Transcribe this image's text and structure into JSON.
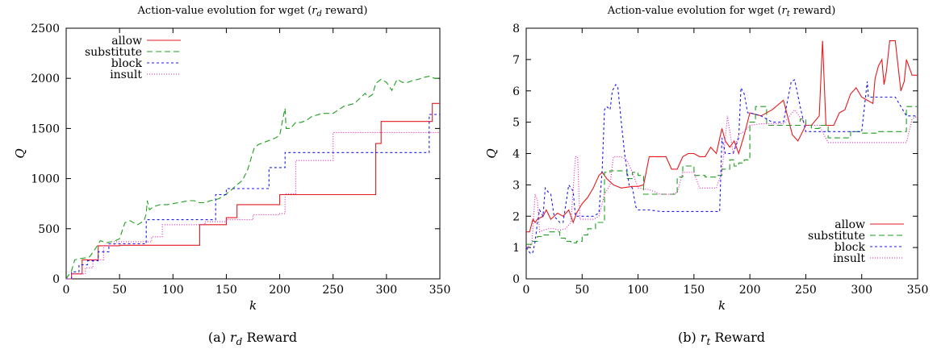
{
  "series_styles": {
    "allow": {
      "color": "#e41a1c",
      "dash": ""
    },
    "substitute": {
      "color": "#1e9e1e",
      "dash": "7,4"
    },
    "block": {
      "color": "#1a1aee",
      "dash": "3,3"
    },
    "insult": {
      "color": "#e01fb0",
      "dash": "1,2"
    }
  },
  "chart_data": [
    {
      "type": "line",
      "title_prefix": "Action-value evolution for wget (",
      "title_var": "r",
      "title_sub": "d",
      "title_suffix": " reward)",
      "xlabel": "k",
      "ylabel": "Q",
      "xlim": [
        0,
        350
      ],
      "ylim": [
        0,
        2500
      ],
      "xticks": [
        0,
        50,
        100,
        150,
        200,
        250,
        300,
        350
      ],
      "yticks": [
        0,
        500,
        1000,
        1500,
        2000,
        2500
      ],
      "legend_position": "top-left",
      "caption_label": "(a)",
      "caption_var": "r",
      "caption_sub": "d",
      "caption_suffix": " Reward",
      "series": [
        {
          "name": "allow",
          "step": true,
          "x": [
            0,
            5,
            15,
            30,
            50,
            118,
            125,
            150,
            160,
            200,
            290,
            295,
            320,
            343,
            350
          ],
          "y": [
            0,
            50,
            190,
            330,
            335,
            335,
            540,
            610,
            740,
            840,
            1350,
            1570,
            1570,
            1750,
            1750
          ]
        },
        {
          "name": "substitute",
          "step": false,
          "x": [
            0,
            5,
            8,
            12,
            18,
            22,
            28,
            32,
            38,
            42,
            46,
            50,
            55,
            60,
            63,
            67,
            70,
            73,
            75,
            76,
            78,
            82,
            88,
            95,
            100,
            110,
            115,
            120,
            125,
            130,
            135,
            140,
            143,
            148,
            155,
            160,
            165,
            170,
            176,
            180,
            185,
            190,
            195,
            200,
            203,
            205,
            206,
            210,
            215,
            220,
            225,
            230,
            240,
            250,
            260,
            270,
            280,
            283,
            287,
            290,
            295,
            300,
            305,
            310,
            315,
            320,
            325,
            330,
            335,
            340,
            345,
            350
          ],
          "y": [
            0,
            80,
            190,
            200,
            210,
            220,
            310,
            380,
            360,
            370,
            380,
            400,
            560,
            580,
            560,
            540,
            560,
            580,
            650,
            780,
            690,
            720,
            740,
            740,
            750,
            770,
            780,
            780,
            760,
            760,
            780,
            790,
            800,
            830,
            890,
            940,
            980,
            1090,
            1300,
            1340,
            1360,
            1380,
            1400,
            1430,
            1600,
            1700,
            1500,
            1500,
            1560,
            1560,
            1580,
            1620,
            1650,
            1650,
            1720,
            1750,
            1850,
            1810,
            1840,
            1950,
            1990,
            1960,
            1880,
            1990,
            1960,
            1960,
            1980,
            1990,
            2010,
            2020,
            2000,
            2000
          ]
        },
        {
          "name": "block",
          "step": true,
          "x": [
            0,
            5,
            12,
            20,
            30,
            40,
            75,
            140,
            150,
            190,
            205,
            250,
            340,
            350
          ],
          "y": [
            0,
            70,
            140,
            180,
            270,
            350,
            590,
            840,
            900,
            1110,
            1260,
            1260,
            1640,
            1640
          ]
        },
        {
          "name": "insult",
          "step": true,
          "x": [
            0,
            5,
            18,
            25,
            35,
            45,
            75,
            80,
            90,
            100,
            130,
            150,
            175,
            200,
            205,
            215,
            250,
            340,
            350
          ],
          "y": [
            0,
            50,
            110,
            190,
            330,
            370,
            370,
            420,
            540,
            540,
            570,
            590,
            640,
            650,
            850,
            1180,
            1460,
            1460,
            1460
          ]
        }
      ]
    },
    {
      "type": "line",
      "title_prefix": "Action-value evolution for wget (",
      "title_var": "r",
      "title_sub": "t",
      "title_suffix": " reward)",
      "xlabel": "k",
      "ylabel": "Q",
      "xlim": [
        0,
        350
      ],
      "ylim": [
        0,
        8
      ],
      "xticks": [
        0,
        50,
        100,
        150,
        200,
        250,
        300,
        350
      ],
      "yticks": [
        0,
        1,
        2,
        3,
        4,
        5,
        6,
        7,
        8
      ],
      "legend_position": "bottom-right",
      "caption_label": "(b)",
      "caption_var": "r",
      "caption_sub": "t",
      "caption_suffix": " Reward",
      "series": [
        {
          "name": "allow",
          "step": false,
          "x": [
            0,
            3,
            6,
            8,
            10,
            15,
            18,
            22,
            28,
            33,
            38,
            42,
            45,
            50,
            55,
            60,
            65,
            68,
            72,
            78,
            85,
            95,
            100,
            105,
            110,
            115,
            120,
            125,
            130,
            135,
            140,
            145,
            150,
            155,
            160,
            165,
            170,
            175,
            178,
            182,
            186,
            190,
            195,
            200,
            210,
            220,
            230,
            238,
            243,
            250,
            255,
            262,
            265,
            268,
            275,
            280,
            285,
            290,
            295,
            300,
            305,
            310,
            312,
            315,
            318,
            320,
            322,
            325,
            330,
            335,
            338,
            340,
            345,
            350
          ],
          "y": [
            1.5,
            1.5,
            1.9,
            1.8,
            1.9,
            2.0,
            2.2,
            1.9,
            2.1,
            2.0,
            2.2,
            1.8,
            2.1,
            2.4,
            2.6,
            2.9,
            3.3,
            3.4,
            3.2,
            3.0,
            2.9,
            2.95,
            2.95,
            3.0,
            3.9,
            3.9,
            3.9,
            3.9,
            3.5,
            3.5,
            3.9,
            4.0,
            4.0,
            3.9,
            3.9,
            4.2,
            4.0,
            4.8,
            4.4,
            4.2,
            4.4,
            4.0,
            4.6,
            5.3,
            5.2,
            5.4,
            5.7,
            4.6,
            4.4,
            4.9,
            4.9,
            5.2,
            7.6,
            4.9,
            4.9,
            5.3,
            5.4,
            5.9,
            6.1,
            5.8,
            5.7,
            5.6,
            6.4,
            6.8,
            7.0,
            6.2,
            6.6,
            7.6,
            7.6,
            6.0,
            6.3,
            7.0,
            6.5,
            6.5
          ]
        },
        {
          "name": "substitute",
          "step": true,
          "x": [
            0,
            5,
            10,
            15,
            20,
            25,
            30,
            35,
            40,
            45,
            50,
            55,
            62,
            70,
            75,
            90,
            95,
            100,
            105,
            110,
            120,
            135,
            140,
            150,
            160,
            170,
            175,
            182,
            186,
            190,
            195,
            200,
            205,
            215,
            245,
            250,
            255,
            262,
            270,
            290,
            300,
            315,
            320,
            340,
            345,
            350
          ],
          "y": [
            1.1,
            1.2,
            1.35,
            1.4,
            1.5,
            1.5,
            1.3,
            1.2,
            1.15,
            1.2,
            1.4,
            1.6,
            1.8,
            3.4,
            3.45,
            3.2,
            3.4,
            3.3,
            2.7,
            2.7,
            2.7,
            3.25,
            3.6,
            3.3,
            3.25,
            3.3,
            3.5,
            3.8,
            3.6,
            3.7,
            3.8,
            5.0,
            5.5,
            4.9,
            5.1,
            4.9,
            4.8,
            4.9,
            4.5,
            4.7,
            4.65,
            4.7,
            4.7,
            5.5,
            5.5,
            5.5
          ]
        },
        {
          "name": "block",
          "step": false,
          "x": [
            0,
            4,
            6,
            8,
            10,
            12,
            15,
            17,
            19,
            22,
            25,
            30,
            33,
            38,
            42,
            44,
            46,
            50,
            55,
            60,
            65,
            68,
            70,
            72,
            75,
            77,
            80,
            82,
            85,
            88,
            92,
            95,
            98,
            100,
            110,
            120,
            130,
            140,
            150,
            160,
            170,
            173,
            175,
            178,
            185,
            190,
            192,
            195,
            198,
            200,
            210,
            220,
            230,
            237,
            240,
            245,
            250,
            260,
            270,
            280,
            290,
            300,
            305,
            306,
            310,
            320,
            330,
            340,
            350
          ],
          "y": [
            1.0,
            0.8,
            0.85,
            1.2,
            1.8,
            2.2,
            2.0,
            2.9,
            2.8,
            2.7,
            2.0,
            1.8,
            1.8,
            3.0,
            2.8,
            2.0,
            2.0,
            2.0,
            2.0,
            2.0,
            2.1,
            3.5,
            5.4,
            5.5,
            5.4,
            6.0,
            6.2,
            6.1,
            5.0,
            4.0,
            3.0,
            2.9,
            2.3,
            2.2,
            2.2,
            2.15,
            2.15,
            2.15,
            2.15,
            2.15,
            2.15,
            2.15,
            4.5,
            4.0,
            4.0,
            4.5,
            6.1,
            5.9,
            5.3,
            5.3,
            5.2,
            5.0,
            5.0,
            6.3,
            6.35,
            5.5,
            4.7,
            4.7,
            4.7,
            4.7,
            4.7,
            4.7,
            6.3,
            5.8,
            5.8,
            5.8,
            5.8,
            5.2,
            5.2
          ]
        },
        {
          "name": "insult",
          "step": false,
          "x": [
            0,
            5,
            8,
            10,
            12,
            15,
            20,
            25,
            30,
            35,
            40,
            44,
            46,
            48,
            52,
            56,
            60,
            65,
            70,
            75,
            78,
            82,
            85,
            90,
            95,
            100,
            110,
            120,
            130,
            135,
            140,
            150,
            155,
            160,
            165,
            170,
            175,
            180,
            185,
            190,
            195,
            200,
            210,
            220,
            230,
            240,
            250,
            255,
            262,
            270,
            280,
            290,
            300,
            310,
            320,
            330,
            340,
            345,
            350
          ],
          "y": [
            1.0,
            1.1,
            2.7,
            2.5,
            1.5,
            1.55,
            1.6,
            1.6,
            1.55,
            1.6,
            1.8,
            3.9,
            3.9,
            1.9,
            1.9,
            1.9,
            1.9,
            2.0,
            2.7,
            3.0,
            3.9,
            3.9,
            3.9,
            3.8,
            3.4,
            2.9,
            2.85,
            2.7,
            2.7,
            2.75,
            3.4,
            3.4,
            2.9,
            2.9,
            2.9,
            2.9,
            3.4,
            5.2,
            4.0,
            4.6,
            4.7,
            4.9,
            4.95,
            4.95,
            4.95,
            5.4,
            4.9,
            4.9,
            4.9,
            4.35,
            4.35,
            4.35,
            4.35,
            4.35,
            4.35,
            4.35,
            4.35,
            5.1,
            5.2
          ]
        }
      ]
    }
  ]
}
